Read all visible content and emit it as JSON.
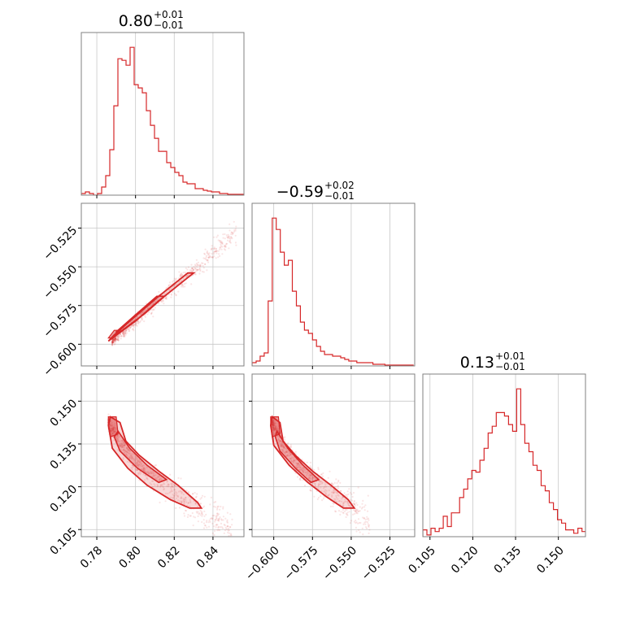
{
  "colors": {
    "accent": "#d62728",
    "grid": "#c8c8c8",
    "frame": "#808080"
  },
  "chart_data": {
    "type": "corner",
    "parameters": [
      {
        "range": [
          0.772,
          0.856
        ],
        "ticks": [
          "0.78",
          "0.80",
          "0.82",
          "0.84"
        ],
        "tick_values": [
          0.78,
          0.8,
          0.82,
          0.84
        ],
        "title": {
          "median": "0.80",
          "plus": "+0.01",
          "minus": "−0.01"
        }
      },
      {
        "range": [
          -0.614,
          -0.509
        ],
        "ticks": [
          "−0.600",
          "−0.575",
          "−0.550",
          "−0.525"
        ],
        "tick_values": [
          -0.6,
          -0.575,
          -0.55,
          -0.525
        ],
        "title": {
          "median": "−0.59",
          "plus": "+0.02",
          "minus": "−0.01"
        }
      },
      {
        "range": [
          0.1025,
          0.1595
        ],
        "ticks": [
          "0.105",
          "0.120",
          "0.135",
          "0.150"
        ],
        "tick_values": [
          0.105,
          0.12,
          0.135,
          0.15
        ],
        "title": {
          "median": "0.13",
          "plus": "+0.01",
          "minus": "−0.01"
        }
      }
    ],
    "histograms": [
      {
        "param": 0,
        "bin_start": 0.772,
        "bin_width": 0.0021,
        "counts": [
          0.01,
          0.02,
          0.01,
          0,
          0.01,
          0.05,
          0.12,
          0.28,
          0.55,
          0.84,
          0.83,
          0.8,
          0.91,
          0.68,
          0.66,
          0.63,
          0.52,
          0.43,
          0.35,
          0.27,
          0.27,
          0.2,
          0.17,
          0.14,
          0.12,
          0.08,
          0.07,
          0.07,
          0.04,
          0.04,
          0.03,
          0.025,
          0.02,
          0.02,
          0.01,
          0.01,
          0.005,
          0.005,
          0.005,
          0.005
        ]
      },
      {
        "param": 1,
        "bin_start": -0.614,
        "bin_width": 0.0026,
        "counts": [
          0.02,
          0.03,
          0.06,
          0.08,
          0.4,
          0.91,
          0.84,
          0.7,
          0.62,
          0.65,
          0.46,
          0.37,
          0.27,
          0.22,
          0.2,
          0.16,
          0.12,
          0.09,
          0.07,
          0.07,
          0.06,
          0.06,
          0.05,
          0.04,
          0.03,
          0.03,
          0.02,
          0.02,
          0.02,
          0.02,
          0.01,
          0.01,
          0.01,
          0.005,
          0.005,
          0.005,
          0.005,
          0.005,
          0.005,
          0.005
        ]
      },
      {
        "param": 2,
        "bin_start": 0.1025,
        "bin_width": 0.00143,
        "counts": [
          0.04,
          0.01,
          0.05,
          0.03,
          0.05,
          0.12,
          0.06,
          0.14,
          0.14,
          0.23,
          0.28,
          0.34,
          0.39,
          0.38,
          0.45,
          0.52,
          0.61,
          0.65,
          0.73,
          0.73,
          0.71,
          0.66,
          0.62,
          0.87,
          0.66,
          0.55,
          0.5,
          0.42,
          0.39,
          0.3,
          0.27,
          0.2,
          0.16,
          0.1,
          0.08,
          0.04,
          0.04,
          0.02,
          0.05,
          0.03
        ]
      }
    ],
    "scatter_panels": [
      {
        "x": 0,
        "y": 1,
        "trend": [
          [
            0.788,
            -0.598
          ],
          [
            0.8,
            -0.585
          ],
          [
            0.81,
            -0.574
          ],
          [
            0.82,
            -0.563
          ],
          [
            0.834,
            -0.548
          ],
          [
            0.852,
            -0.527
          ]
        ],
        "spread": 0.0025
      },
      {
        "x": 0,
        "y": 2,
        "trend": [
          [
            0.786,
            0.1425
          ],
          [
            0.795,
            0.132
          ],
          [
            0.805,
            0.125
          ],
          [
            0.815,
            0.1205
          ],
          [
            0.825,
            0.116
          ],
          [
            0.835,
            0.1115
          ],
          [
            0.85,
            0.1055
          ]
        ],
        "spread": 0.0022
      },
      {
        "x": 1,
        "y": 2,
        "trend": [
          [
            -0.601,
            0.1425
          ],
          [
            -0.592,
            0.133
          ],
          [
            -0.582,
            0.126
          ],
          [
            -0.572,
            0.1215
          ],
          [
            -0.562,
            0.118
          ],
          [
            -0.552,
            0.114
          ],
          [
            -0.538,
            0.108
          ]
        ],
        "spread": 0.0022
      }
    ],
    "contours": [
      {
        "x": 0,
        "y": 1,
        "outer": [
          [
            0.787,
            -0.597
          ],
          [
            0.8,
            -0.585
          ],
          [
            0.812,
            -0.572
          ],
          [
            0.825,
            -0.559
          ],
          [
            0.83,
            -0.554
          ],
          [
            0.827,
            -0.554
          ],
          [
            0.812,
            -0.569
          ],
          [
            0.798,
            -0.584
          ],
          [
            0.789,
            -0.594
          ],
          [
            0.786,
            -0.598
          ]
        ],
        "inner": [
          [
            0.791,
            -0.593
          ],
          [
            0.805,
            -0.58
          ],
          [
            0.815,
            -0.569
          ],
          [
            0.811,
            -0.569
          ],
          [
            0.8,
            -0.581
          ],
          [
            0.79,
            -0.592
          ]
        ],
        "fill": [
          [
            0.788,
            -0.596
          ],
          [
            0.792,
            -0.591
          ],
          [
            0.789,
            -0.591
          ],
          [
            0.786,
            -0.596
          ]
        ]
      },
      {
        "x": 0,
        "y": 2,
        "outer": [
          [
            0.787,
            0.1445
          ],
          [
            0.792,
            0.1425
          ],
          [
            0.795,
            0.136
          ],
          [
            0.802,
            0.131
          ],
          [
            0.812,
            0.1255
          ],
          [
            0.822,
            0.1205
          ],
          [
            0.832,
            0.1145
          ],
          [
            0.834,
            0.1125
          ],
          [
            0.828,
            0.1125
          ],
          [
            0.818,
            0.1155
          ],
          [
            0.806,
            0.1205
          ],
          [
            0.796,
            0.1265
          ],
          [
            0.788,
            0.1335
          ],
          [
            0.786,
            0.1415
          ]
        ],
        "inner": [
          [
            0.791,
            0.1395
          ],
          [
            0.797,
            0.1335
          ],
          [
            0.806,
            0.1275
          ],
          [
            0.816,
            0.1225
          ],
          [
            0.812,
            0.1215
          ],
          [
            0.801,
            0.1265
          ],
          [
            0.792,
            0.1325
          ],
          [
            0.789,
            0.1375
          ]
        ],
        "fill": [
          [
            0.786,
            0.1445
          ],
          [
            0.79,
            0.1445
          ],
          [
            0.791,
            0.1385
          ],
          [
            0.787,
            0.1375
          ],
          [
            0.786,
            0.1415
          ]
        ]
      },
      {
        "x": 1,
        "y": 2,
        "outer": [
          [
            -0.601,
            0.1445
          ],
          [
            -0.596,
            0.1425
          ],
          [
            -0.594,
            0.136
          ],
          [
            -0.586,
            0.131
          ],
          [
            -0.575,
            0.1255
          ],
          [
            -0.563,
            0.1205
          ],
          [
            -0.552,
            0.1155
          ],
          [
            -0.548,
            0.1125
          ],
          [
            -0.555,
            0.1125
          ],
          [
            -0.566,
            0.1165
          ],
          [
            -0.578,
            0.1215
          ],
          [
            -0.59,
            0.1275
          ],
          [
            -0.6,
            0.1345
          ],
          [
            -0.602,
            0.1415
          ]
        ],
        "inner": [
          [
            -0.598,
            0.1395
          ],
          [
            -0.591,
            0.1335
          ],
          [
            -0.581,
            0.1275
          ],
          [
            -0.571,
            0.1225
          ],
          [
            -0.576,
            0.1215
          ],
          [
            -0.586,
            0.1265
          ],
          [
            -0.596,
            0.1325
          ],
          [
            -0.599,
            0.1375
          ]
        ],
        "fill": [
          [
            -0.602,
            0.1445
          ],
          [
            -0.597,
            0.1445
          ],
          [
            -0.596,
            0.1385
          ],
          [
            -0.601,
            0.1375
          ],
          [
            -0.602,
            0.1415
          ]
        ]
      }
    ]
  }
}
